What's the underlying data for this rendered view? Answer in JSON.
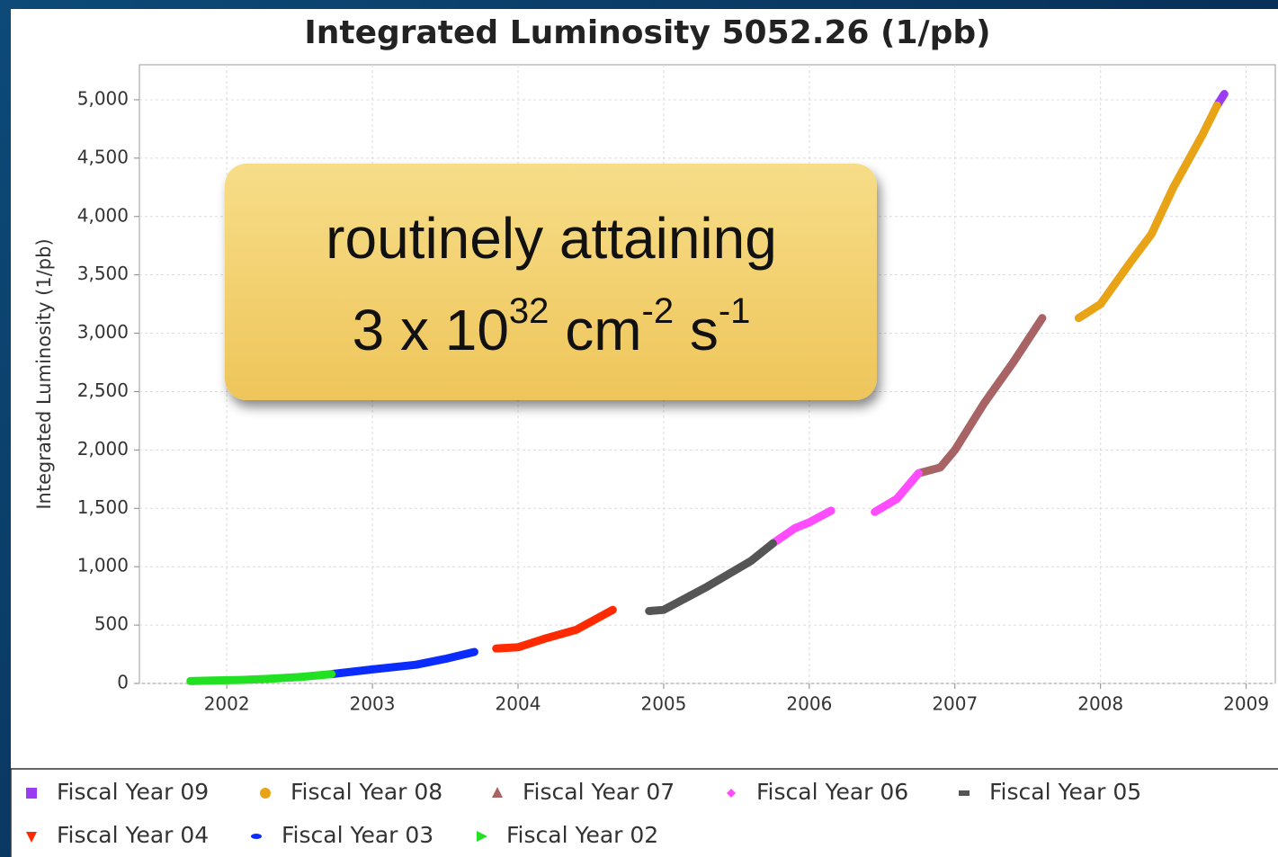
{
  "chart_data": {
    "type": "line",
    "title": "Integrated Luminosity 5052.26 (1/pb)",
    "y_label": "Integrated Luminosity (1/pb)",
    "xlim": [
      2001.4,
      2009.2
    ],
    "xticks": [
      2002,
      2003,
      2004,
      2005,
      2006,
      2007,
      2008,
      2009
    ],
    "ylim": [
      0,
      5300
    ],
    "yticks": [
      0,
      500,
      {
        "value": 1000,
        "label": "1,000"
      },
      {
        "value": 1500,
        "label": "1,500"
      },
      {
        "value": 2000,
        "label": "2,000"
      },
      {
        "value": 2500,
        "label": "2,500"
      },
      {
        "value": 3000,
        "label": "3,000"
      },
      {
        "value": 3500,
        "label": "3,500"
      },
      {
        "value": 4000,
        "label": "4,000"
      },
      {
        "value": 4500,
        "label": "4,500"
      },
      {
        "value": 5000,
        "label": "5,000"
      }
    ],
    "grid": true,
    "legend": "bottom",
    "annotation": {
      "text": "routinely attaining",
      "formula": [
        "3 x 10",
        "32",
        " cm",
        "-2",
        " s",
        "-1"
      ]
    },
    "series": [
      {
        "name": "Fiscal Year 09",
        "color": "#9a3cf2",
        "marker": "square",
        "x": [
          2008.8,
          2008.85
        ],
        "values": [
          4950,
          5050
        ]
      },
      {
        "name": "Fiscal Year 08",
        "color": "#e8a317",
        "marker": "circle",
        "x": [
          2007.85,
          2008.0,
          2008.2,
          2008.35,
          2008.5,
          2008.7,
          2008.8
        ],
        "values": [
          3130,
          3250,
          3600,
          3850,
          4250,
          4700,
          4950
        ]
      },
      {
        "name": "Fiscal Year 07",
        "color": "#a86464",
        "marker": "triangle-up",
        "x": [
          2006.75,
          2006.9,
          2007.0,
          2007.2,
          2007.4,
          2007.6
        ],
        "values": [
          1800,
          1850,
          2000,
          2400,
          2750,
          3130
        ]
      },
      {
        "name": "Fiscal Year 06",
        "color": "#ff4cff",
        "marker": "diamond",
        "x": [
          2005.75,
          2005.9,
          2006.0,
          2006.15,
          null,
          2006.45,
          2006.6,
          2006.75
        ],
        "values": [
          1200,
          1330,
          1380,
          1480,
          null,
          1470,
          1580,
          1800
        ]
      },
      {
        "name": "Fiscal Year 05",
        "color": "#555555",
        "marker": "bar",
        "x": [
          2004.9,
          2005.0,
          2005.3,
          2005.6,
          2005.75
        ],
        "values": [
          620,
          630,
          830,
          1050,
          1200
        ]
      },
      {
        "name": "Fiscal Year 04",
        "color": "#ff2a00",
        "marker": "triangle-down",
        "x": [
          2003.85,
          2004.0,
          2004.2,
          2004.4,
          2004.65
        ],
        "values": [
          300,
          310,
          390,
          460,
          630
        ]
      },
      {
        "name": "Fiscal Year 03",
        "color": "#0a2cff",
        "marker": "ellipse",
        "x": [
          2002.72,
          2003.0,
          2003.3,
          2003.5,
          2003.7
        ],
        "values": [
          80,
          120,
          160,
          210,
          270
        ]
      },
      {
        "name": "Fiscal Year 02",
        "color": "#22e022",
        "marker": "triangle-right",
        "x": [
          2001.75,
          2001.9,
          2002.1,
          2002.3,
          2002.5,
          2002.72
        ],
        "values": [
          20,
          25,
          30,
          40,
          55,
          80
        ]
      }
    ]
  }
}
